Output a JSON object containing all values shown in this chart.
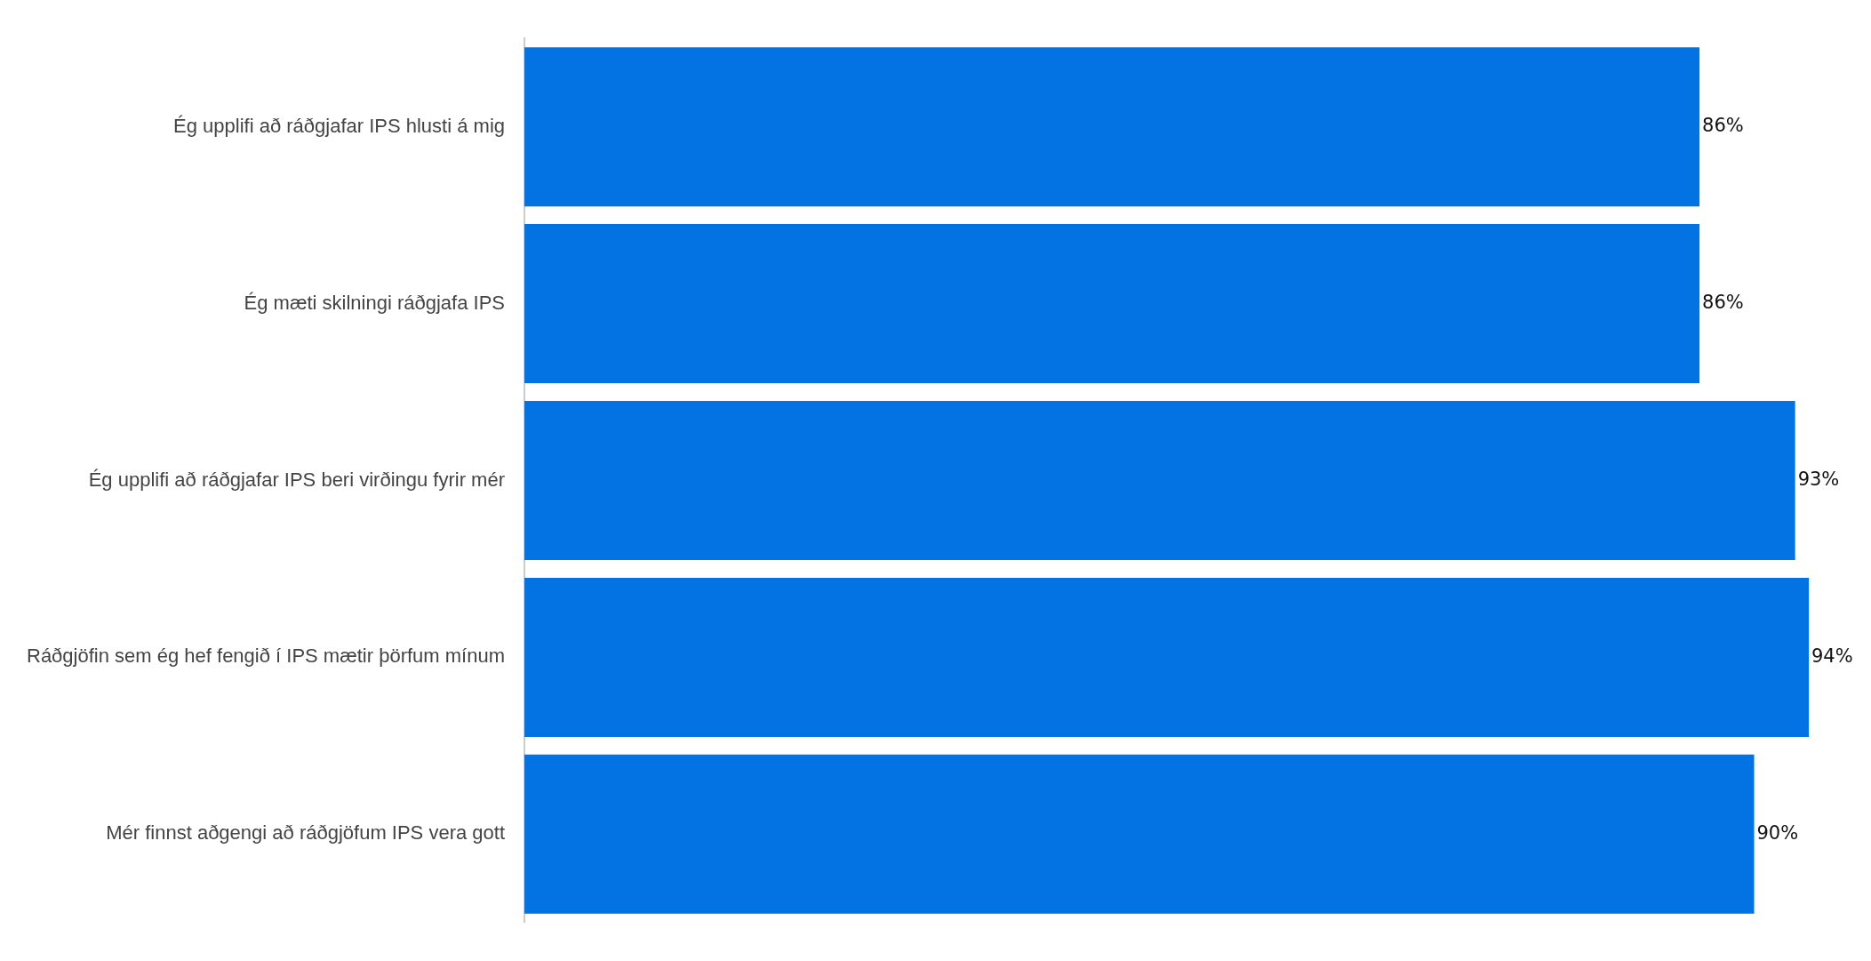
{
  "chart_data": {
    "type": "bar",
    "orientation": "horizontal",
    "categories": [
      "Ég upplifi að ráðgjafar IPS hlusti á mig",
      "Ég mæti skilningi ráðgjafa IPS",
      "Ég upplifi að ráðgjafar IPS beri virðingu fyrir mér",
      "Ráðgjöfin sem ég hef fengið í IPS mætir þörfum mínum",
      "Mér finnst aðgengi að ráðgjöfum IPS vera gott"
    ],
    "values": [
      86,
      86,
      93,
      94,
      90
    ],
    "value_labels": [
      "86%",
      "86%",
      "93%",
      "94%",
      "90%"
    ],
    "color": "#0373e3",
    "legend": false
  }
}
